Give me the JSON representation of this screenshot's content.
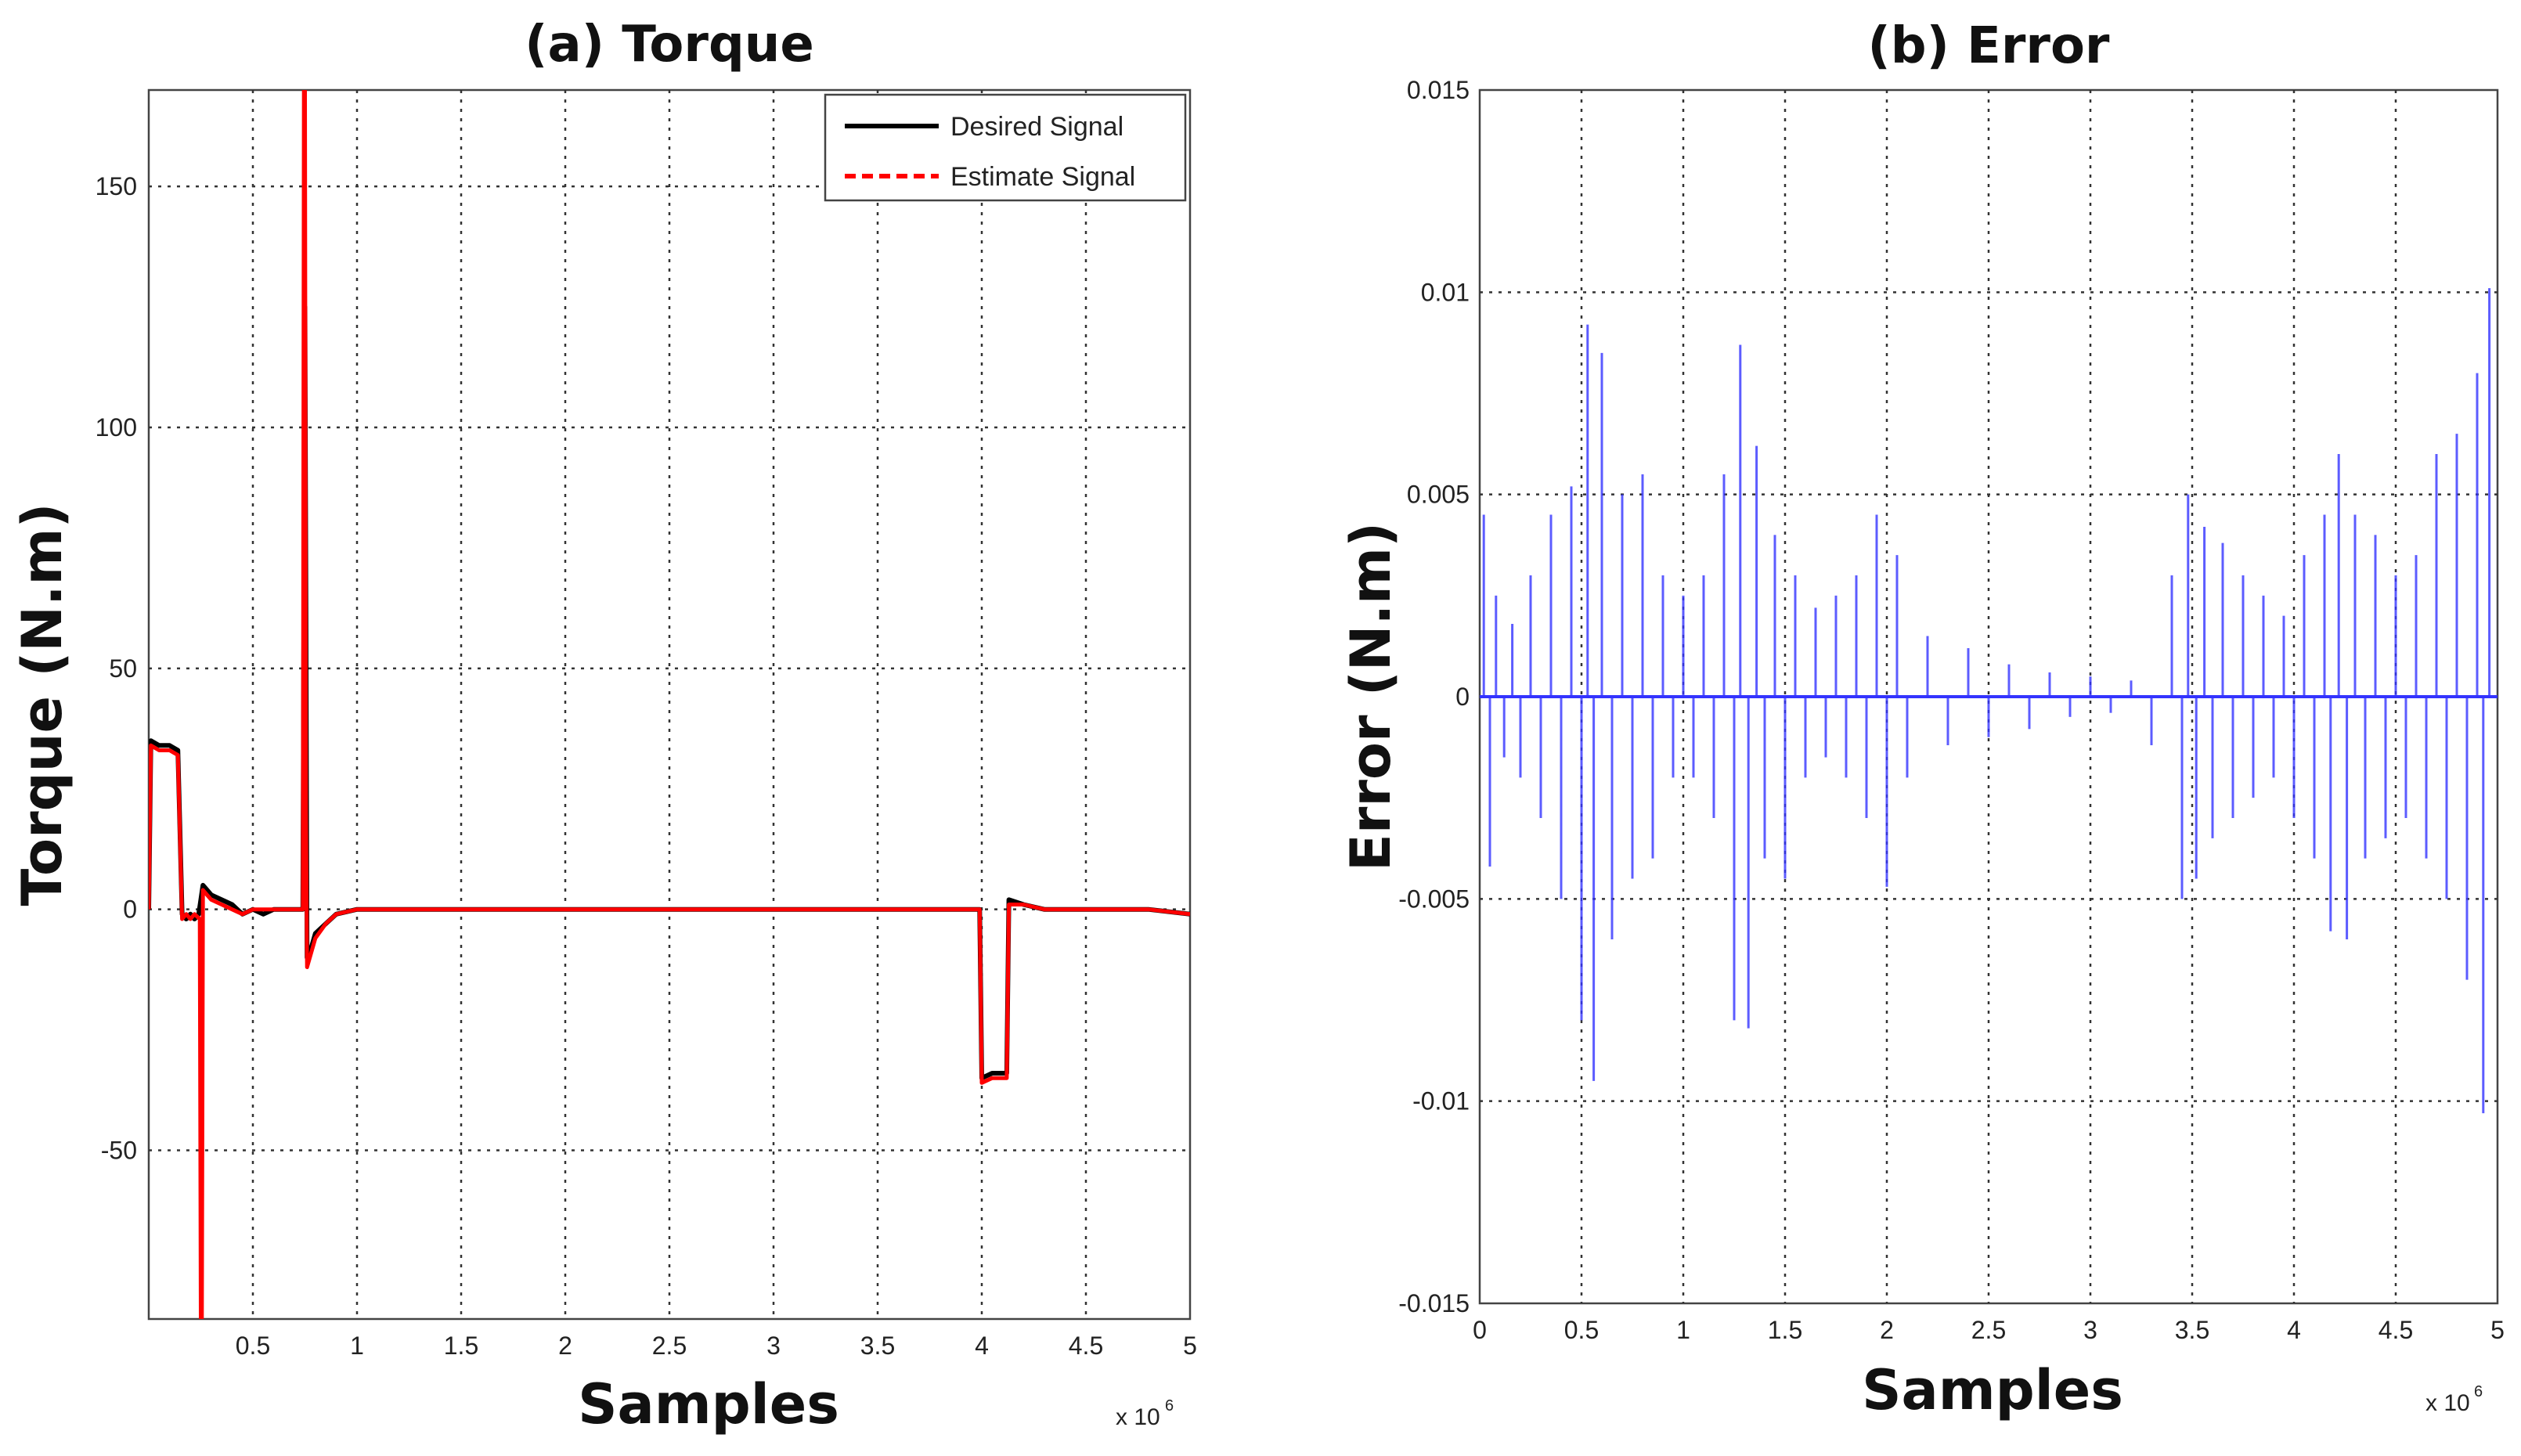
{
  "chart_data": [
    {
      "type": "line",
      "title": "(a)  Torque",
      "xlabel": "Samples",
      "ylabel": "Torque (N.m)",
      "x_multiplier_label": "x 10",
      "x_multiplier_exp": "6",
      "xlim": [
        0,
        5
      ],
      "ylim": [
        -85,
        170
      ],
      "xticks": [
        0.5,
        1,
        1.5,
        2,
        2.5,
        3,
        3.5,
        4,
        4.5,
        5
      ],
      "xtick_labels": [
        "0.5",
        "1",
        "1.5",
        "2",
        "2.5",
        "3",
        "3.5",
        "4",
        "4.5",
        "5"
      ],
      "yticks": [
        -50,
        0,
        50,
        100,
        150
      ],
      "ytick_labels": [
        "-50",
        "0",
        "50",
        "100",
        "150"
      ],
      "grid": true,
      "legend_position": "top-right",
      "series": [
        {
          "name": "Desired Signal",
          "color": "#000000",
          "style": "solid",
          "x": [
            0,
            0.01,
            0.05,
            0.1,
            0.14,
            0.16,
            0.18,
            0.2,
            0.22,
            0.24,
            0.26,
            0.28,
            0.3,
            0.35,
            0.4,
            0.45,
            0.5,
            0.55,
            0.6,
            0.65,
            0.7,
            0.74,
            0.75,
            0.76,
            0.78,
            0.8,
            0.85,
            0.9,
            1.0,
            1.2,
            1.5,
            2.0,
            2.5,
            3.0,
            3.5,
            3.9,
            3.99,
            4.0,
            4.05,
            4.12,
            4.13,
            4.2,
            4.3,
            4.5,
            4.8,
            5.0
          ],
          "y": [
            0,
            35,
            34,
            34,
            33,
            -1,
            -2,
            -1,
            -2,
            -1,
            5,
            4,
            3,
            2,
            1,
            -1,
            0,
            -1,
            0,
            0,
            0,
            0,
            125,
            -10,
            -8,
            -5,
            -3,
            -1,
            0,
            0,
            0,
            0,
            0,
            0,
            0,
            0,
            0,
            -35,
            -34,
            -34,
            2,
            1,
            0,
            0,
            0,
            -1
          ]
        },
        {
          "name": "Estimate Signal",
          "color": "#ff0000",
          "style": "dashed",
          "x": [
            0,
            0.01,
            0.05,
            0.1,
            0.14,
            0.16,
            0.18,
            0.2,
            0.22,
            0.245,
            0.25,
            0.255,
            0.26,
            0.28,
            0.3,
            0.35,
            0.4,
            0.45,
            0.5,
            0.55,
            0.6,
            0.65,
            0.7,
            0.74,
            0.745,
            0.75,
            0.755,
            0.76,
            0.78,
            0.8,
            0.85,
            0.9,
            1.0,
            1.2,
            1.5,
            2.0,
            2.5,
            3.0,
            3.5,
            3.9,
            3.99,
            4.0,
            4.05,
            4.12,
            4.13,
            4.2,
            4.3,
            4.5,
            4.8,
            5.0
          ],
          "y": [
            0,
            34,
            33,
            33,
            32,
            -2,
            -1,
            -2,
            -1,
            -2,
            -85,
            -85,
            4,
            3,
            2,
            1,
            0,
            -1,
            0,
            0,
            0,
            0,
            0,
            0,
            170,
            170,
            20,
            -12,
            -9,
            -6,
            -3,
            -1,
            0,
            0,
            0,
            0,
            0,
            0,
            0,
            0,
            0,
            -36,
            -35,
            -35,
            1,
            1,
            0,
            0,
            0,
            -1
          ]
        }
      ]
    },
    {
      "type": "line",
      "title": "(b)  Error",
      "xlabel": "Samples",
      "ylabel": "Error (N.m)",
      "x_multiplier_label": "x 10",
      "x_multiplier_exp": "6",
      "xlim": [
        0,
        5
      ],
      "ylim": [
        -0.015,
        0.015
      ],
      "xticks": [
        0,
        0.5,
        1,
        1.5,
        2,
        2.5,
        3,
        3.5,
        4,
        4.5,
        5
      ],
      "xtick_labels": [
        "0",
        "0.5",
        "1",
        "1.5",
        "2",
        "2.5",
        "3",
        "3.5",
        "4",
        "4.5",
        "5"
      ],
      "yticks": [
        -0.015,
        -0.01,
        -0.005,
        0,
        0.005,
        0.01,
        0.015
      ],
      "ytick_labels": [
        "-0.015",
        "-0.01",
        "-0.005",
        "0",
        "0.005",
        "0.01",
        "0.015"
      ],
      "grid": true,
      "series": [
        {
          "name": "Error",
          "color": "#3333ff",
          "style": "solid",
          "stem_base": 0,
          "x": [
            0.02,
            0.05,
            0.08,
            0.12,
            0.16,
            0.2,
            0.25,
            0.3,
            0.35,
            0.4,
            0.45,
            0.5,
            0.53,
            0.56,
            0.6,
            0.65,
            0.7,
            0.75,
            0.8,
            0.85,
            0.9,
            0.95,
            1.0,
            1.05,
            1.1,
            1.15,
            1.2,
            1.25,
            1.28,
            1.32,
            1.36,
            1.4,
            1.45,
            1.5,
            1.55,
            1.6,
            1.65,
            1.7,
            1.75,
            1.8,
            1.85,
            1.9,
            1.95,
            2.0,
            2.05,
            2.1,
            2.2,
            2.3,
            2.4,
            2.5,
            2.6,
            2.7,
            2.8,
            2.9,
            3.0,
            3.1,
            3.2,
            3.3,
            3.4,
            3.45,
            3.48,
            3.52,
            3.56,
            3.6,
            3.65,
            3.7,
            3.75,
            3.8,
            3.85,
            3.9,
            3.95,
            4.0,
            4.05,
            4.1,
            4.15,
            4.18,
            4.22,
            4.26,
            4.3,
            4.35,
            4.4,
            4.45,
            4.5,
            4.55,
            4.6,
            4.65,
            4.7,
            4.75,
            4.8,
            4.85,
            4.9,
            4.93,
            4.96
          ],
          "y": [
            0.0045,
            -0.0042,
            0.0025,
            -0.0015,
            0.0018,
            -0.002,
            0.003,
            -0.003,
            0.0045,
            -0.005,
            0.0052,
            -0.008,
            0.0092,
            -0.0095,
            0.0085,
            -0.006,
            0.005,
            -0.0045,
            0.0055,
            -0.004,
            0.003,
            -0.002,
            0.0025,
            -0.002,
            0.003,
            -0.003,
            0.0055,
            -0.008,
            0.0087,
            -0.0082,
            0.0062,
            -0.004,
            0.004,
            -0.0045,
            0.003,
            -0.002,
            0.0022,
            -0.0015,
            0.0025,
            -0.002,
            0.003,
            -0.003,
            0.0045,
            -0.0047,
            0.0035,
            -0.002,
            0.0015,
            -0.0012,
            0.0012,
            -0.001,
            0.0008,
            -0.0008,
            0.0006,
            -0.0005,
            0.0005,
            -0.0004,
            0.0004,
            -0.0012,
            0.003,
            -0.005,
            0.005,
            -0.0045,
            0.0042,
            -0.0035,
            0.0038,
            -0.003,
            0.003,
            -0.0025,
            0.0025,
            -0.002,
            0.002,
            -0.003,
            0.0035,
            -0.004,
            0.0045,
            -0.0058,
            0.006,
            -0.006,
            0.0045,
            -0.004,
            0.004,
            -0.0035,
            0.003,
            -0.003,
            0.0035,
            -0.004,
            0.006,
            -0.005,
            0.0065,
            -0.007,
            0.008,
            -0.0103,
            0.0101
          ]
        }
      ]
    }
  ]
}
